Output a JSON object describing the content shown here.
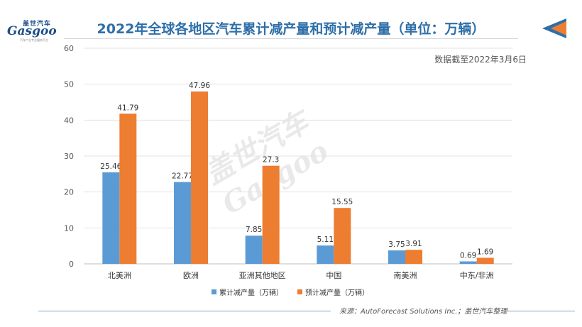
{
  "logo": {
    "top": "盖世汽车",
    "main": "Gasgoo",
    "sub": "汽车产业专业服务平台"
  },
  "title": "2022年全球各地区汽车累计减产量和预计减产量（单位：万辆）",
  "note": "数据截至2022年3月6日",
  "source": "来源：AutoForecast Solutions Inc.；盖世汽车整理",
  "watermark": "盖世汽车 Gasgoo",
  "colors": {
    "series1": "#5b9bd5",
    "series2": "#ed7d31",
    "title": "#2e6fa8"
  },
  "chart_data": {
    "type": "bar",
    "categories": [
      "北美洲",
      "欧洲",
      "亚洲其他地区",
      "中国",
      "南美洲",
      "中东/非洲"
    ],
    "series": [
      {
        "name": "累计减产量（万辆）",
        "values": [
          25.46,
          22.77,
          7.85,
          5.11,
          3.75,
          0.69
        ],
        "labels": [
          "25.46",
          "22.77",
          "7.85",
          "5.11",
          "3.75",
          "0.69"
        ]
      },
      {
        "name": "预计减产量（万辆）",
        "values": [
          41.79,
          47.96,
          27.3,
          15.55,
          3.91,
          1.69
        ],
        "labels": [
          "41.79",
          "47.96",
          "27.3",
          "15.55",
          "3.91",
          "1.69"
        ]
      }
    ],
    "ylim": [
      0,
      60
    ],
    "yticks": [
      "0",
      "10",
      "20",
      "30",
      "40",
      "50",
      "60"
    ],
    "grid": true,
    "legend": "bottom"
  }
}
